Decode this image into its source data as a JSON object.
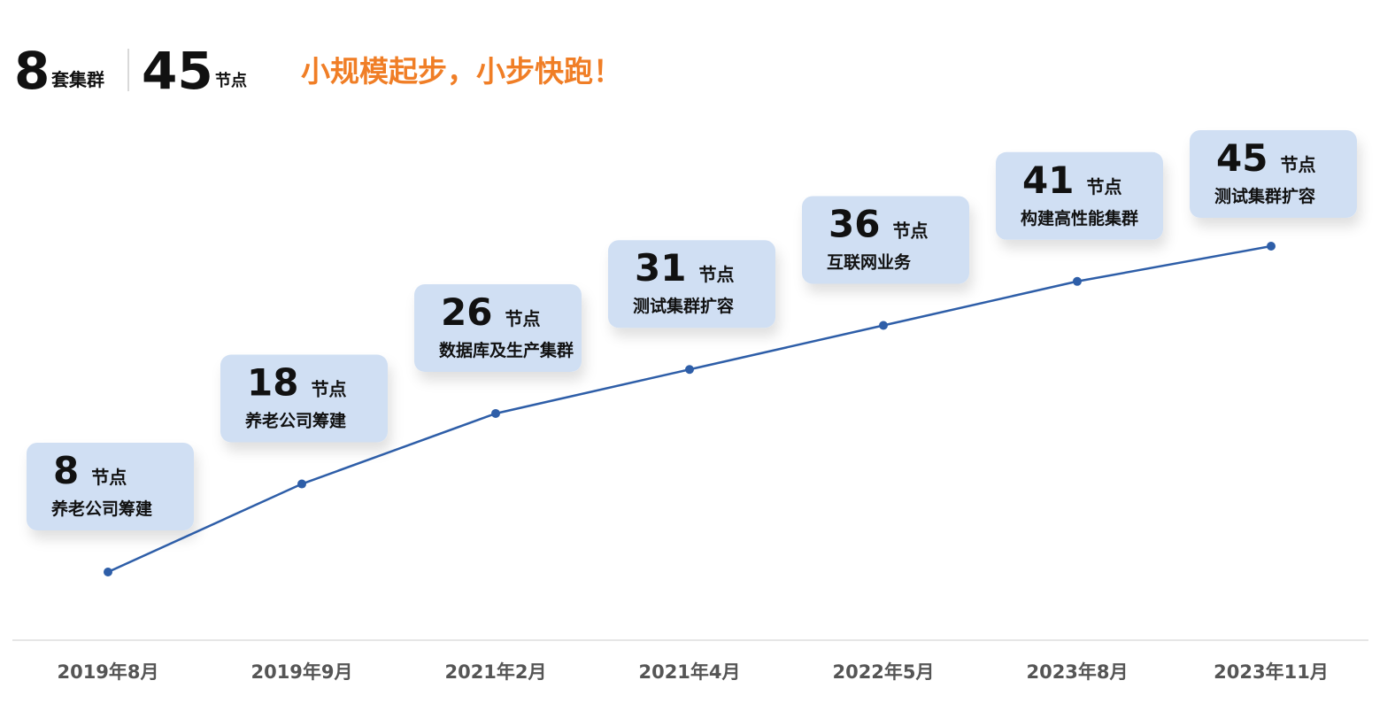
{
  "header": {
    "clusters": {
      "value": 8,
      "unit": "套集群"
    },
    "nodes": {
      "value": 45,
      "unit": "节点"
    },
    "slogan": "小规模起步，小步快跑！"
  },
  "chart_data": {
    "type": "line",
    "categories": [
      "2019年8月",
      "2019年9月",
      "2021年2月",
      "2021年4月",
      "2022年5月",
      "2023年8月",
      "2023年11月"
    ],
    "values": [
      8,
      18,
      26,
      31,
      36,
      41,
      45
    ],
    "value_unit": "节点",
    "annotations": [
      "养老公司筹建",
      "养老公司筹建",
      "数据库及生产集群",
      "测试集群扩容",
      "互联网业务",
      "构建高性能集群",
      "测试集群扩容"
    ],
    "color": "#2e5ea8"
  }
}
